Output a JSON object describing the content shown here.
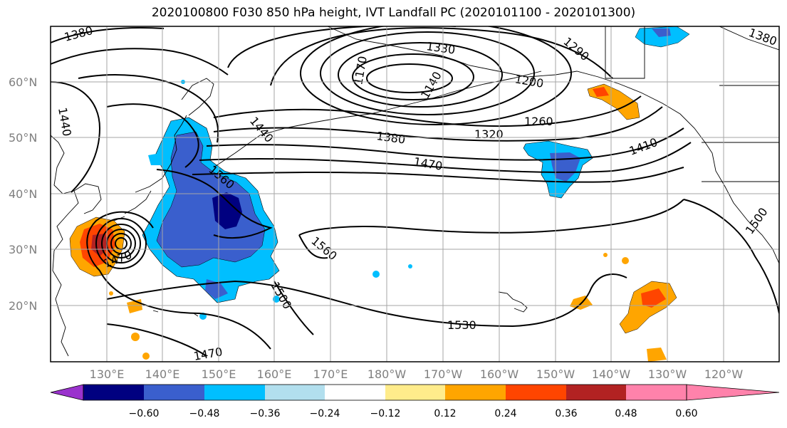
{
  "title": "2020100800 F030 850 hPa height, IVT Landfall PC (2020101100 - 2020101300)",
  "lat_labels": [
    "60°N",
    "50°N",
    "40°N",
    "30°N",
    "20°N"
  ],
  "lon_labels": [
    "130°E",
    "140°E",
    "150°E",
    "160°E",
    "170°E",
    "180°W",
    "170°W",
    "160°W",
    "150°W",
    "140°W",
    "130°W",
    "120°W"
  ],
  "contour_labels": [
    "1380",
    "1330",
    "1290",
    "1170",
    "1140",
    "1200",
    "1260",
    "1320",
    "1440",
    "1440",
    "1380",
    "1470",
    "1410",
    "1560",
    "1560",
    "1470",
    "1500",
    "1530",
    "1470",
    "1500",
    "1380"
  ],
  "colorbar": {
    "ticks": [
      "−0.60",
      "−0.48",
      "−0.36",
      "−0.24",
      "−0.12",
      "0.12",
      "0.24",
      "0.36",
      "0.48",
      "0.60"
    ],
    "colors": {
      "extend_min": "#9a32cd",
      "b1": "#000080",
      "b2": "#3a5fcd",
      "b3": "#00bfff",
      "b4": "#b2dfee",
      "b5": "#ffffff",
      "b6": "#ffec8b",
      "b7": "#ffa500",
      "b8": "#ff4500",
      "b9": "#b22222",
      "extend_max": "#ff82ab"
    }
  }
}
